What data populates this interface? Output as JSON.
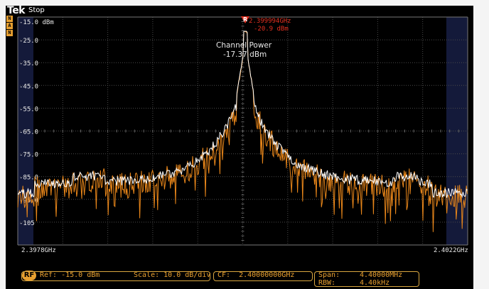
{
  "header": {
    "logo": "Tek",
    "run_state": "Stop",
    "mode_badges": [
      "N",
      "A",
      "N"
    ]
  },
  "display": {
    "y_labels": [
      "-15.0 dBm",
      "-25.0",
      "-35.0",
      "-45.0",
      "-55.0",
      "-65.0",
      "-75.0",
      "-85.0",
      "-95.0",
      "-105"
    ],
    "x_start": "2.3978GHz",
    "x_stop": "2.4022GHz",
    "marker": {
      "symbol": "R",
      "frequency": "2.399994GHz",
      "level": "-20.9 dBm"
    },
    "channel_power": {
      "label": "Channel Power",
      "value": "-17.37 dBm"
    }
  },
  "readout": {
    "rf_badge": "RF",
    "ref": "Ref: -15.0 dBm",
    "scale": "Scale: 10.0 dB/div",
    "cf": "CF:  2.40000000GHz",
    "span_label": "Span:",
    "span_value": "4.40000MHz",
    "rbw_label": "RBW:",
    "rbw_value": "4.40kHz"
  },
  "colors": {
    "background": "#000000",
    "grid": "#5a5a5a",
    "trace_orange": "#e8861a",
    "trace_white": "#ffffff",
    "marker_red": "#e53020",
    "readout_text": "#e8a030",
    "band_blue": "#141a3a"
  },
  "chart_data": {
    "type": "line",
    "x_range_ghz": [
      2.3978,
      2.4022
    ],
    "ylim": [
      -110,
      -15
    ],
    "series": []
  }
}
